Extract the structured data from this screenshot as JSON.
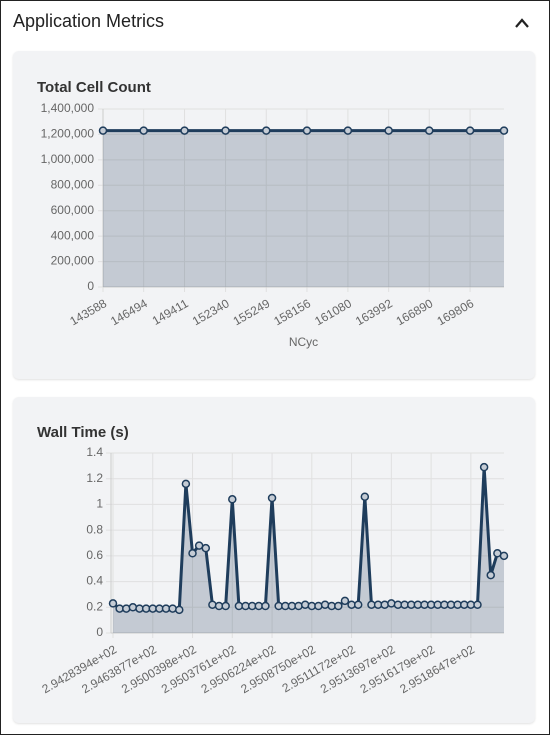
{
  "header": {
    "title": "Application Metrics"
  },
  "chart_data": [
    {
      "type": "area",
      "title": "Total Cell Count",
      "xlabel": "NCyc",
      "x": [
        143588,
        146494,
        149411,
        152340,
        155249,
        158156,
        161080,
        163992,
        166890,
        169806,
        172230
      ],
      "series": [
        {
          "name": "Total Cell Count",
          "color": "#1f3d5c",
          "values": [
            1230000,
            1230000,
            1230000,
            1230000,
            1230000,
            1230000,
            1230000,
            1230000,
            1230000,
            1230000,
            1230000
          ]
        }
      ],
      "xlim": [
        143588,
        172230
      ],
      "xticks": [
        143588,
        146494,
        149411,
        152340,
        155249,
        158156,
        161080,
        163992,
        166890,
        169806
      ],
      "ylim": [
        0,
        1400000
      ],
      "yticks": [
        0,
        {
          "value": 200000,
          "label": "200,000"
        },
        {
          "value": 400000,
          "label": "400,000"
        },
        {
          "value": 600000,
          "label": "600,000"
        },
        {
          "value": 800000,
          "label": "800,000"
        },
        {
          "value": 1000000,
          "label": "1,000,000"
        },
        {
          "value": 1200000,
          "label": "1,200,000"
        },
        {
          "value": 1400000,
          "label": "1,400,000"
        }
      ],
      "grid": true
    },
    {
      "type": "area",
      "title": "Wall Time (s)",
      "categories": [
        "2.9428394e+02",
        null,
        null,
        null,
        null,
        null,
        "2.9463877e+02",
        null,
        null,
        null,
        null,
        null,
        "2.9500398e+02",
        null,
        null,
        null,
        null,
        null,
        "2.9503761e+02",
        null,
        null,
        null,
        null,
        null,
        "2.9506224e+02",
        null,
        null,
        null,
        null,
        null,
        "2.9508750e+02",
        null,
        null,
        null,
        null,
        null,
        "2.9511172e+02",
        null,
        null,
        null,
        null,
        null,
        "2.9513697e+02",
        null,
        null,
        null,
        null,
        null,
        "2.9516179e+02",
        null,
        null,
        null,
        null,
        null,
        "2.9518647e+02",
        null,
        null,
        null,
        null,
        null
      ],
      "series": [
        {
          "name": "Wall Time (s)",
          "color": "#1f3d5c",
          "values": [
            0.23,
            0.19,
            0.19,
            0.2,
            0.19,
            0.19,
            0.19,
            0.19,
            0.19,
            0.19,
            0.18,
            1.16,
            0.62,
            0.68,
            0.66,
            0.22,
            0.21,
            0.21,
            1.04,
            0.21,
            0.21,
            0.21,
            0.21,
            0.21,
            1.05,
            0.21,
            0.21,
            0.21,
            0.21,
            0.22,
            0.21,
            0.21,
            0.22,
            0.21,
            0.21,
            0.25,
            0.22,
            0.22,
            1.06,
            0.22,
            0.22,
            0.22,
            0.23,
            0.22,
            0.22,
            0.22,
            0.22,
            0.22,
            0.22,
            0.22,
            0.22,
            0.22,
            0.22,
            0.22,
            0.22,
            0.22,
            1.29,
            0.45,
            0.62,
            0.6
          ]
        }
      ],
      "ylim": [
        0,
        1.4
      ],
      "yticks": [
        0,
        0.2,
        0.4,
        0.6,
        0.8,
        1,
        1.2,
        1.4
      ],
      "grid": true
    }
  ]
}
